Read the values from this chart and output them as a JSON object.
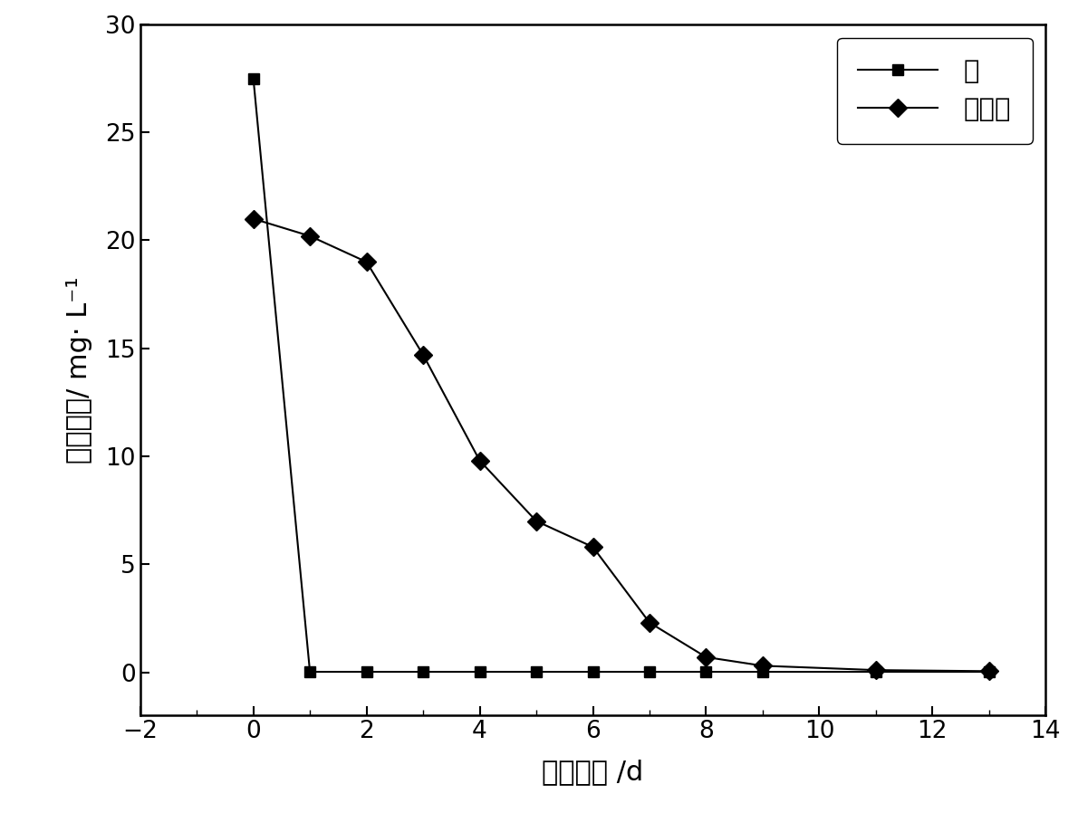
{
  "arsenic_x": [
    0,
    1,
    2,
    3,
    4,
    5,
    6,
    7,
    8,
    9,
    11,
    13
  ],
  "arsenic_y": [
    27.5,
    0.02,
    0.02,
    0.02,
    0.02,
    0.02,
    0.02,
    0.02,
    0.02,
    0.02,
    0.02,
    0.02
  ],
  "nitrate_x": [
    0,
    1,
    2,
    3,
    4,
    5,
    6,
    7,
    8,
    9,
    11,
    13
  ],
  "nitrate_y": [
    21.0,
    20.2,
    19.0,
    14.7,
    9.8,
    7.0,
    5.8,
    2.3,
    0.7,
    0.3,
    0.1,
    0.05
  ],
  "xlabel": "反应时间 /d",
  "ylabel": "进水浓度/ mg· L⁻¹",
  "legend_arsenic": "础",
  "legend_nitrate": "确酸盐",
  "xlim": [
    -2,
    14
  ],
  "ylim": [
    -2,
    30
  ],
  "xticks": [
    -2,
    0,
    2,
    4,
    6,
    8,
    10,
    12,
    14
  ],
  "yticks": [
    0,
    5,
    10,
    15,
    20,
    25,
    30
  ],
  "line_color": "#000000",
  "marker_color": "#000000",
  "background_color": "#ffffff",
  "fontsize_label": 22,
  "fontsize_tick": 19,
  "fontsize_legend": 21
}
